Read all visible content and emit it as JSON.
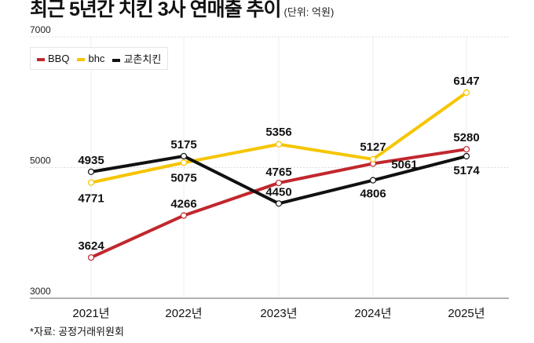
{
  "title": "최근 5년간 치킨 3사 연매출 추이",
  "unit": "(단위: 억원)",
  "source": "*자료: 공정거래위원회",
  "chart_data": {
    "type": "line",
    "title": "최근 5년간 치킨 3사 연매출 추이",
    "ylabel": "",
    "xlabel": "",
    "categories": [
      "2021년",
      "2022년",
      "2023년",
      "2024년",
      "2025년"
    ],
    "ylim": [
      3000,
      7000
    ],
    "yticks": [
      "3000",
      "5000",
      "7000"
    ],
    "grid": true,
    "legend": "top-left",
    "series": [
      {
        "name": "BBQ",
        "color": "#c1272d",
        "values": [
          3624,
          4266,
          4765,
          5061,
          5280
        ]
      },
      {
        "name": "bhc",
        "color": "#f6c500",
        "values": [
          4771,
          5075,
          5356,
          5127,
          6147
        ]
      },
      {
        "name": "교촌치킨",
        "color": "#111111",
        "values": [
          4935,
          5175,
          4450,
          4806,
          5174
        ]
      }
    ]
  }
}
